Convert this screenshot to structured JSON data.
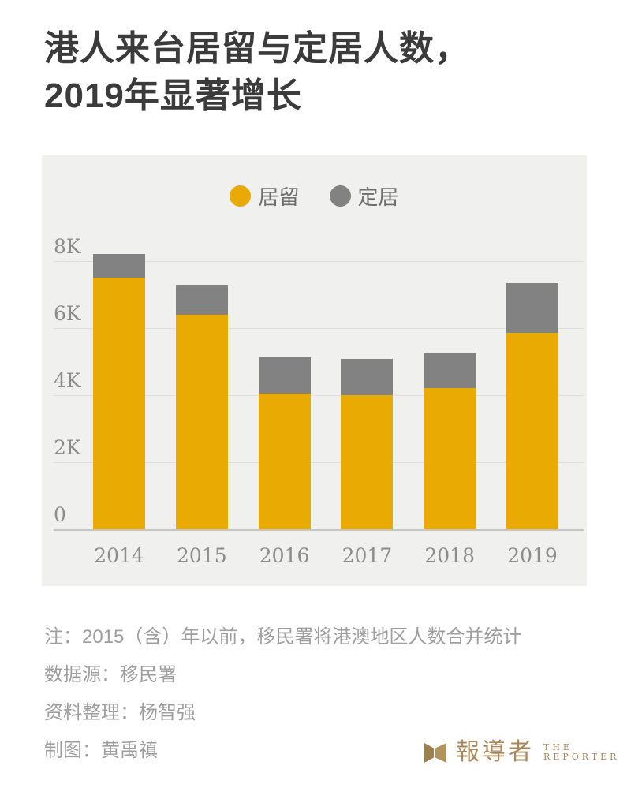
{
  "title": {
    "line1": "港人来台居留与定居人数，",
    "line2": "2019年显著增长"
  },
  "legend": [
    {
      "label": "居留",
      "color": "#e9ab03"
    },
    {
      "label": "定居",
      "color": "#828282"
    }
  ],
  "chart_data": {
    "type": "bar",
    "stacked": true,
    "categories": [
      "2014",
      "2015",
      "2016",
      "2017",
      "2018",
      "2019"
    ],
    "series": [
      {
        "name": "居留",
        "color": "#e9ab03",
        "values": [
          7500,
          6400,
          4050,
          4000,
          4200,
          5850
        ]
      },
      {
        "name": "定居",
        "color": "#828282",
        "values": [
          700,
          900,
          1080,
          1080,
          1050,
          1480
        ]
      }
    ],
    "totals": [
      8200,
      7300,
      5130,
      5080,
      5250,
      7330
    ],
    "y_ticks": [
      {
        "value": 8000,
        "label": "8K"
      },
      {
        "value": 6000,
        "label": "6K"
      },
      {
        "value": 4000,
        "label": "4K"
      },
      {
        "value": 2000,
        "label": "2K"
      },
      {
        "value": 0,
        "label": "0"
      }
    ],
    "ylim": [
      0,
      8600
    ],
    "grid": true,
    "legend_position": "top-center",
    "panel_background": "#f0f0ee"
  },
  "footer": {
    "notes": [
      "注：2015（含）年以前，移民署将港澳地区人数合并统计",
      "数据源：移民署",
      "资料整理：杨智强",
      "制图：黄禹禛"
    ]
  },
  "logo": {
    "cjk": "報導者",
    "en_line1": "THE",
    "en_line2": "REPORTER",
    "color": "#a8875a"
  }
}
